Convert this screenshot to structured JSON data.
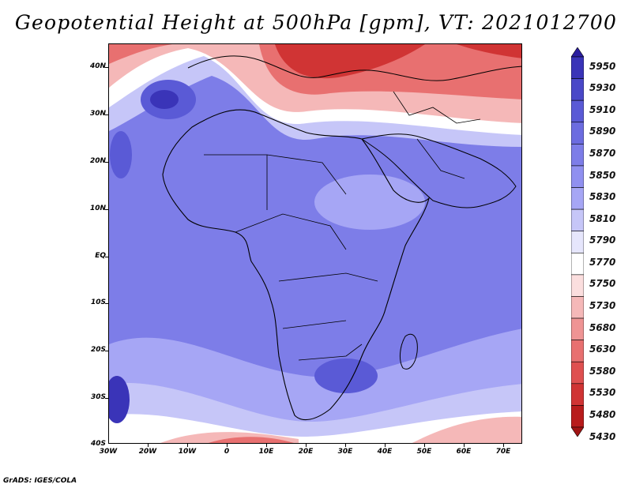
{
  "title": "Geopotential Height at 500hPa [gpm], VT: 2021012700",
  "footer": "GrADS: IGES/COLA",
  "axes": {
    "lat_labels": [
      "40N",
      "30N",
      "20N",
      "10N",
      "EQ",
      "10S",
      "20S",
      "30S",
      "40S"
    ],
    "lon_labels": [
      "30W",
      "20W",
      "10W",
      "0",
      "10E",
      "20E",
      "30E",
      "40E",
      "50E",
      "60E",
      "70E"
    ]
  },
  "colorbar": {
    "labels": [
      "5950",
      "5930",
      "5910",
      "5890",
      "5870",
      "5850",
      "5830",
      "5810",
      "5790",
      "5770",
      "5750",
      "5730",
      "5680",
      "5630",
      "5580",
      "5530",
      "5480",
      "5430"
    ],
    "colors": [
      "#2b1ea0",
      "#3a34b8",
      "#4a48c8",
      "#5a5ad6",
      "#6c6ce0",
      "#7d7de8",
      "#9090f0",
      "#a6a6f5",
      "#c6c6f8",
      "#e6e6fc",
      "#ffffff",
      "#fbdede",
      "#f5b8b8",
      "#ef9494",
      "#e87070",
      "#df5050",
      "#d03434",
      "#b81c1c",
      "#a01414"
    ]
  },
  "map": {
    "region": "Africa",
    "field": "500hPa geopotential height",
    "colors": {
      "deep_blue": "#3a34b8",
      "blue": "#5a5ad6",
      "mid_blue": "#7d7de8",
      "light_blue": "#a6a6f5",
      "pale_blue": "#c6c6f8",
      "white": "#ffffff",
      "pale_red": "#f5b8b8",
      "red": "#e87070",
      "deep_red": "#d03434"
    }
  }
}
